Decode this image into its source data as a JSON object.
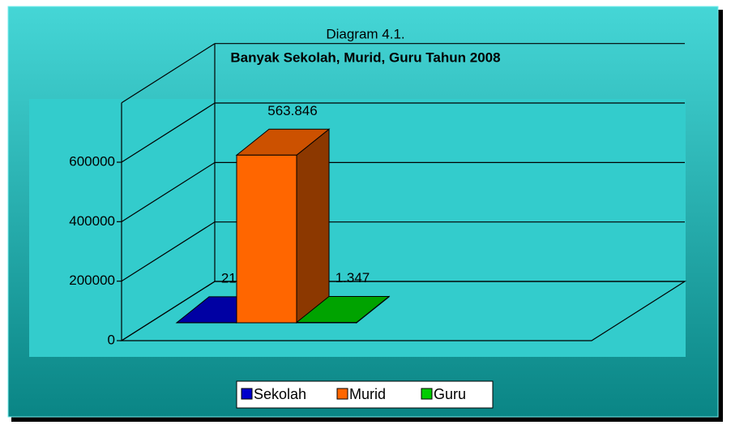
{
  "chart_data": {
    "type": "bar3d",
    "title": "Diagram 4.1.",
    "subtitle": "Banyak Sekolah, Murid, Guru Tahun 2008",
    "series": [
      {
        "name": "Sekolah",
        "color": "#0000cc",
        "values": [
          215
        ],
        "value_labels": [
          "215"
        ]
      },
      {
        "name": "Murid",
        "color": "#ff6600",
        "values": [
          563846
        ],
        "value_labels": [
          "563.846"
        ]
      },
      {
        "name": "Guru",
        "color": "#00cc00",
        "values": [
          1347
        ],
        "value_labels": [
          "1.347"
        ]
      }
    ],
    "ylim": [
      0,
      800000
    ],
    "yticks": [
      0,
      200000,
      400000,
      600000
    ],
    "grid": true,
    "legend": "bottom"
  }
}
